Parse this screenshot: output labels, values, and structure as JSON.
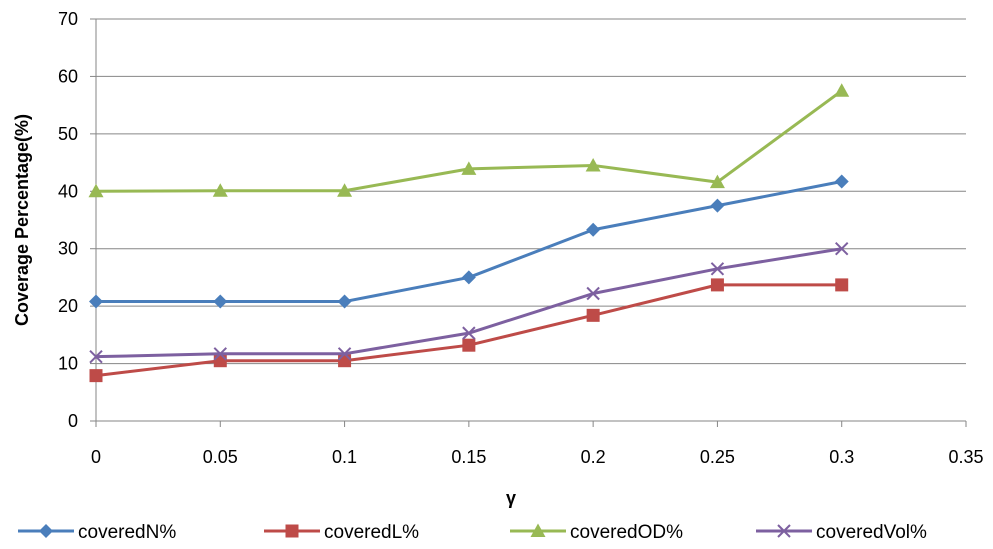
{
  "chart_data": {
    "type": "line",
    "title": "",
    "xlabel": "γ",
    "ylabel": "Coverage Percentage(%)",
    "xlim": [
      0,
      0.35
    ],
    "ylim": [
      0,
      70
    ],
    "x_ticks": [
      "0",
      "0.05",
      "0.1",
      "0.15",
      "0.2",
      "0.25",
      "0.3",
      "0.35"
    ],
    "y_ticks": [
      "0",
      "10",
      "20",
      "30",
      "40",
      "50",
      "60",
      "70"
    ],
    "x": [
      0,
      0.05,
      0.1,
      0.15,
      0.2,
      0.25,
      0.3
    ],
    "grid": "horizontal",
    "legend_position": "bottom",
    "series": [
      {
        "name": "coveredN%",
        "color": "#4a7ebb",
        "marker": "diamond",
        "values": [
          20.8,
          20.8,
          20.8,
          25.0,
          33.3,
          37.5,
          41.7
        ]
      },
      {
        "name": "coveredL%",
        "color": "#be4b48",
        "marker": "square",
        "values": [
          7.9,
          10.5,
          10.5,
          13.2,
          18.4,
          23.7,
          23.7
        ]
      },
      {
        "name": "coveredOD%",
        "color": "#98b954",
        "marker": "triangle",
        "values": [
          40.0,
          40.1,
          40.1,
          43.9,
          44.5,
          41.6,
          57.5
        ]
      },
      {
        "name": "coveredVol%",
        "color": "#7d60a0",
        "marker": "x",
        "values": [
          11.2,
          11.7,
          11.7,
          15.3,
          22.2,
          26.5,
          30.0
        ]
      }
    ]
  }
}
